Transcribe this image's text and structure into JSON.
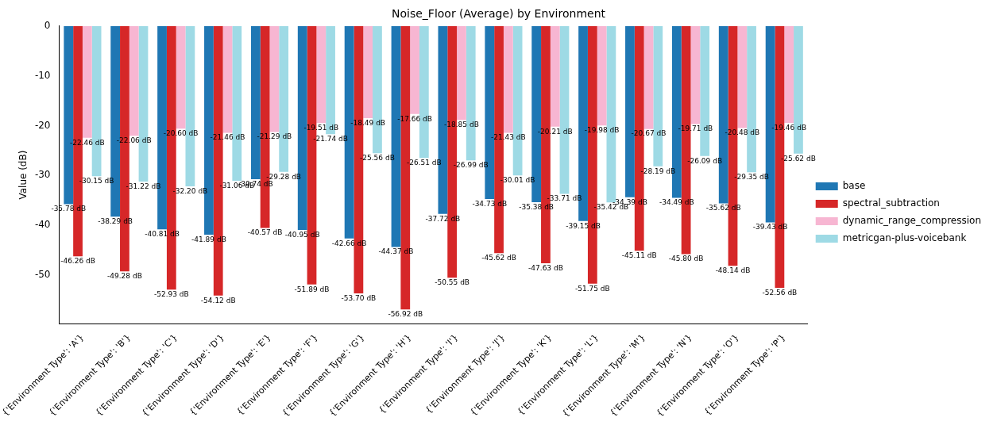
{
  "chart_data": {
    "type": "bar",
    "title": "Noise_Floor (Average) by Environment",
    "ylabel": "Value (dB)",
    "categories": [
      "{'Environment Type': 'A'}",
      "{'Environment Type': 'B'}",
      "{'Environment Type': 'C'}",
      "{'Environment Type': 'D'}",
      "{'Environment Type': 'E'}",
      "{'Environment Type': 'F'}",
      "{'Environment Type': 'G'}",
      "{'Environment Type': 'H'}",
      "{'Environment Type': 'I'}",
      "{'Environment Type': 'J'}",
      "{'Environment Type': 'K'}",
      "{'Environment Type': 'L'}",
      "{'Environment Type': 'M'}",
      "{'Environment Type': 'N'}",
      "{'Environment Type': 'O'}",
      "{'Environment Type': 'P'}"
    ],
    "series": [
      {
        "name": "base",
        "color": "#1f77b4",
        "values": [
          -35.78,
          -38.29,
          -40.81,
          -41.89,
          -30.74,
          -40.95,
          -42.66,
          -44.37,
          -37.72,
          -34.73,
          -35.38,
          -39.15,
          -34.39,
          -34.49,
          -35.62,
          -39.43
        ],
        "value_labels": [
          "-35.78 dB",
          "-38.29 dB",
          "-40.81 dB",
          "-41.89 dB",
          "-30.74 dB",
          "-40.95 dB",
          "-42.66 dB",
          "-44.37 dB",
          "-37.72 dB",
          "-34.73 dB",
          "-35.38 dB",
          "-39.15 dB",
          "-34.39 dB",
          "-34.49 dB",
          "-35.62 dB",
          "-39.43 dB"
        ]
      },
      {
        "name": "spectral_subtraction",
        "color": "#d62728",
        "values": [
          -46.26,
          -49.28,
          -52.93,
          -54.12,
          -40.57,
          -51.89,
          -53.7,
          -56.92,
          -50.55,
          -45.62,
          -47.63,
          -51.75,
          -45.11,
          -45.8,
          -48.14,
          -52.56
        ],
        "value_labels": [
          "-46.26 dB",
          "-49.28 dB",
          "-52.93 dB",
          "-54.12 dB",
          "-40.57 dB",
          "-51.89 dB",
          "-53.70 dB",
          "-56.92 dB",
          "-50.55 dB",
          "-45.62 dB",
          "-47.63 dB",
          "-51.75 dB",
          "-45.11 dB",
          "-45.80 dB",
          "-48.14 dB",
          "-52.56 dB"
        ]
      },
      {
        "name": "dynamic_range_compression",
        "color": "#f7b6d2",
        "values": [
          -22.46,
          -22.06,
          -20.6,
          -21.46,
          -21.29,
          -19.51,
          -18.49,
          -17.66,
          -18.85,
          -21.43,
          -20.21,
          -19.98,
          -20.67,
          -19.71,
          -20.48,
          -19.46
        ],
        "value_labels": [
          "-22.46 dB",
          "-22.06 dB",
          "-20.60 dB",
          "-21.46 dB",
          "-21.29 dB",
          "-19.51 dB",
          "-18.49 dB",
          "-17.66 dB",
          "-18.85 dB",
          "-21.43 dB",
          "-20.21 dB",
          "-19.98 dB",
          "-20.67 dB",
          "-19.71 dB",
          "-20.48 dB",
          "-19.46 dB"
        ]
      },
      {
        "name": "metricgan-plus-voicebank",
        "color": "#9edae5",
        "values": [
          -30.15,
          -31.22,
          -32.2,
          -31.06,
          -29.28,
          -21.74,
          -25.56,
          -26.51,
          -26.99,
          -30.01,
          -33.71,
          -35.42,
          -28.19,
          -26.09,
          -29.35,
          -25.62
        ],
        "value_labels": [
          "-30.15 dB",
          "-31.22 dB",
          "-32.20 dB",
          "-31.06 dB",
          "-29.28 dB",
          "-21.74 dB",
          "-25.56 dB",
          "-26.51 dB",
          "-26.99 dB",
          "-30.01 dB",
          "-33.71 dB",
          "-35.42 dB",
          "-28.19 dB",
          "-26.09 dB",
          "-29.35 dB",
          "-25.62 dB"
        ]
      }
    ],
    "ylim": [
      -59.8,
      0
    ],
    "yticks": [
      0,
      -10,
      -20,
      -30,
      -40,
      -50
    ],
    "legend": "right",
    "grid": false
  }
}
